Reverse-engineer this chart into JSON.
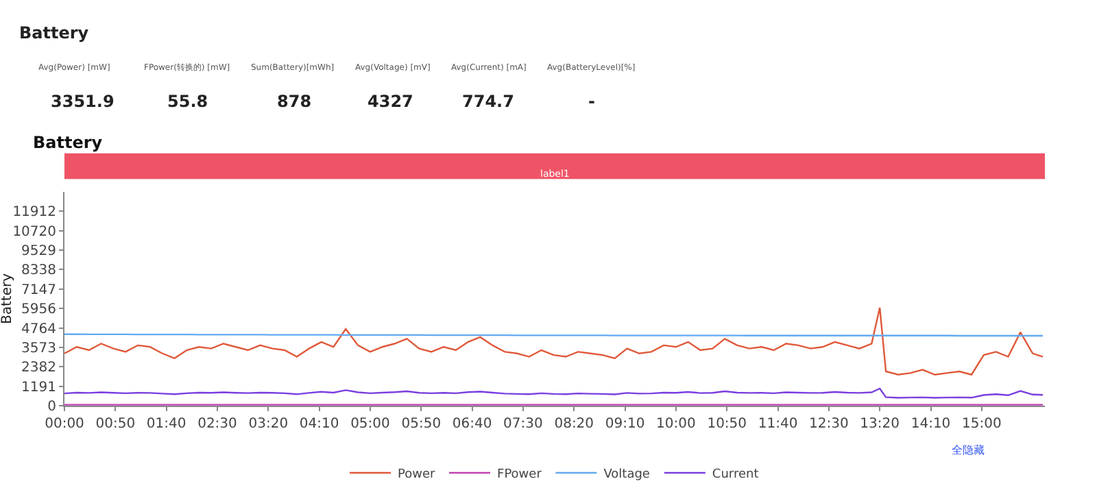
{
  "chart_data": {
    "type": "line",
    "title": "Battery",
    "subtitle": "Battery",
    "ylabel": "Battery",
    "annotations": [
      "Avg(Power) [mW]",
      "3351.9",
      "FPower(转换的) [mW]",
      "55.8",
      "Sum(Battery)[mWh]",
      "878",
      "Avg(Voltage) [mV]",
      "4327",
      "Avg(Current) [mA]",
      "774.7",
      "Avg(BatteryLevel)[%]",
      "-",
      "label1",
      "全隐藏"
    ],
    "x": [
      0,
      12,
      24,
      36,
      48,
      60,
      72,
      84,
      96,
      108,
      120,
      132,
      144,
      156,
      168,
      180,
      192,
      204,
      216,
      228,
      240,
      252,
      264,
      276,
      288,
      300,
      312,
      324,
      336,
      348,
      360,
      372,
      384,
      396,
      408,
      420,
      432,
      444,
      456,
      468,
      480,
      492,
      504,
      516,
      528,
      540,
      552,
      564,
      576,
      588,
      600,
      612,
      624,
      636,
      648,
      660,
      672,
      684,
      696,
      708,
      720,
      732,
      744,
      756,
      768,
      780,
      792,
      800,
      806,
      818,
      830,
      842,
      854,
      866,
      878,
      890,
      902,
      914,
      926,
      938,
      950,
      960
    ],
    "series": [
      {
        "name": "Power",
        "color": "#e0593a",
        "values": [
          3200,
          3600,
          3400,
          3800,
          3500,
          3300,
          3700,
          3600,
          3200,
          2900,
          3400,
          3600,
          3500,
          3800,
          3600,
          3400,
          3700,
          3500,
          3400,
          3000,
          3500,
          3900,
          3600,
          4700,
          3700,
          3300,
          3600,
          3800,
          4100,
          3500,
          3300,
          3600,
          3400,
          3900,
          4200,
          3700,
          3300,
          3200,
          3000,
          3400,
          3100,
          3000,
          3300,
          3200,
          3100,
          2900,
          3500,
          3200,
          3300,
          3700,
          3600,
          3900,
          3400,
          3500,
          4100,
          3700,
          3500,
          3600,
          3400,
          3800,
          3700,
          3500,
          3600,
          3900,
          3700,
          3500,
          3800,
          6000,
          2100,
          1900,
          2000,
          2200,
          1900,
          2000,
          2100,
          1900,
          3100,
          3300,
          3000,
          4500,
          3200,
          3000
        ]
      },
      {
        "name": "FPower",
        "color": "#c040b0",
        "values": [
          56,
          56,
          56,
          56,
          56,
          56,
          56,
          56,
          56,
          56,
          56,
          56,
          56,
          56,
          56,
          56,
          56,
          56,
          56,
          56,
          56,
          56,
          56,
          56,
          56,
          56,
          56,
          56,
          56,
          56,
          56,
          56,
          56,
          56,
          56,
          56,
          56,
          56,
          56,
          56,
          56,
          56,
          56,
          56,
          56,
          56,
          56,
          56,
          56,
          56,
          56,
          56,
          56,
          56,
          56,
          56,
          56,
          56,
          56,
          56,
          56,
          56,
          56,
          56,
          56,
          56,
          56,
          56,
          56,
          56,
          56,
          56,
          56,
          56,
          56,
          56,
          56,
          56,
          56,
          56,
          56,
          56
        ]
      },
      {
        "name": "Voltage",
        "color": "#62aaf0",
        "values": [
          4380,
          4380,
          4370,
          4370,
          4370,
          4370,
          4360,
          4360,
          4360,
          4360,
          4360,
          4350,
          4350,
          4350,
          4350,
          4350,
          4350,
          4340,
          4340,
          4340,
          4340,
          4340,
          4340,
          4330,
          4330,
          4330,
          4330,
          4330,
          4330,
          4330,
          4320,
          4320,
          4320,
          4320,
          4320,
          4320,
          4320,
          4310,
          4310,
          4310,
          4310,
          4310,
          4310,
          4310,
          4310,
          4300,
          4300,
          4300,
          4300,
          4300,
          4300,
          4300,
          4300,
          4300,
          4300,
          4300,
          4290,
          4290,
          4290,
          4290,
          4290,
          4290,
          4290,
          4290,
          4290,
          4290,
          4290,
          4290,
          4290,
          4290,
          4290,
          4290,
          4290,
          4290,
          4280,
          4280,
          4280,
          4280,
          4280,
          4280,
          4280,
          4280
        ]
      },
      {
        "name": "Current",
        "color": "#7a3fe0",
        "values": [
          750,
          800,
          780,
          820,
          790,
          760,
          790,
          780,
          740,
          700,
          760,
          800,
          790,
          820,
          790,
          770,
          800,
          790,
          760,
          700,
          780,
          850,
          800,
          950,
          820,
          760,
          800,
          830,
          880,
          790,
          760,
          790,
          760,
          830,
          860,
          800,
          740,
          720,
          700,
          760,
          720,
          700,
          750,
          730,
          720,
          690,
          780,
          740,
          750,
          800,
          790,
          840,
          770,
          790,
          880,
          800,
          780,
          790,
          760,
          820,
          800,
          780,
          790,
          840,
          800,
          780,
          820,
          1050,
          520,
          480,
          500,
          510,
          480,
          500,
          510,
          490,
          650,
          700,
          640,
          900,
          680,
          660
        ]
      }
    ],
    "xlim": [
      0,
      962
    ],
    "xticks": [
      {
        "value": 0,
        "label": "00:00"
      },
      {
        "value": 50,
        "label": "00:50"
      },
      {
        "value": 100,
        "label": "01:40"
      },
      {
        "value": 150,
        "label": "02:30"
      },
      {
        "value": 200,
        "label": "03:20"
      },
      {
        "value": 250,
        "label": "04:10"
      },
      {
        "value": 300,
        "label": "05:00"
      },
      {
        "value": 350,
        "label": "05:50"
      },
      {
        "value": 400,
        "label": "06:40"
      },
      {
        "value": 450,
        "label": "07:30"
      },
      {
        "value": 500,
        "label": "08:20"
      },
      {
        "value": 550,
        "label": "09:10"
      },
      {
        "value": 600,
        "label": "10:00"
      },
      {
        "value": 650,
        "label": "10:50"
      },
      {
        "value": 700,
        "label": "11:40"
      },
      {
        "value": 750,
        "label": "12:30"
      },
      {
        "value": 800,
        "label": "13:20"
      },
      {
        "value": 850,
        "label": "14:10"
      },
      {
        "value": 900,
        "label": "15:00"
      }
    ],
    "ylim": [
      0,
      13100
    ],
    "yticks": [
      0,
      1191,
      2382,
      3573,
      4764,
      5956,
      7147,
      8338,
      9529,
      10720,
      11912
    ],
    "legend": "bottom",
    "marker": "none",
    "line_style": "solid"
  }
}
